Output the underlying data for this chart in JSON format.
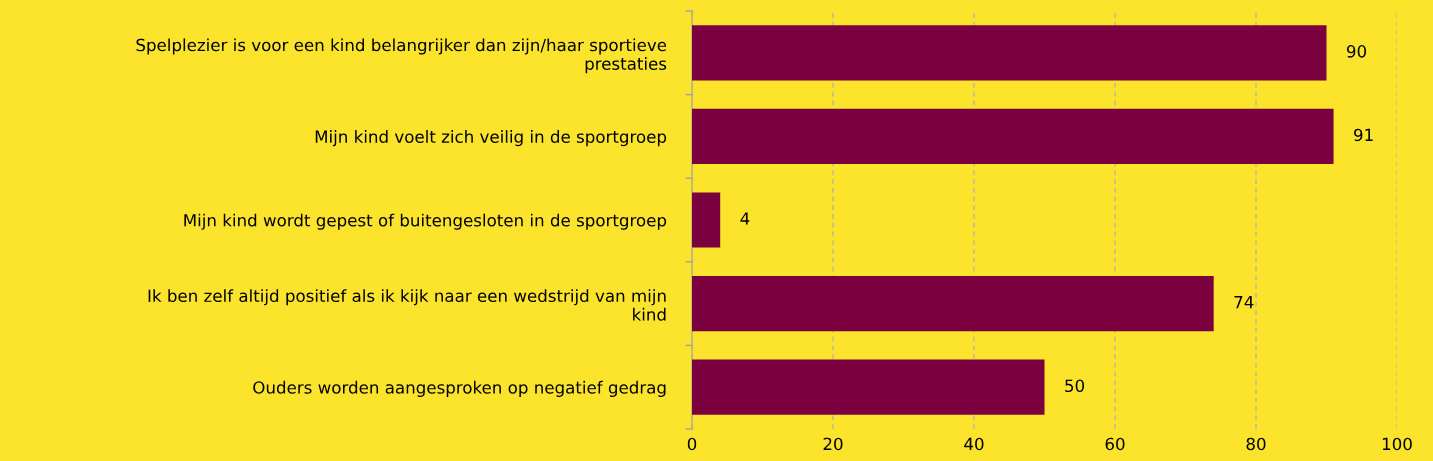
{
  "chart_data": {
    "type": "bar",
    "orientation": "horizontal",
    "categories": [
      "Spelplezier is voor een kind belangrijker dan zijn/haar sportieve\nprestaties",
      "Mijn kind voelt zich veilig in de sportgroep",
      "Mijn kind wordt gepest of buitengesloten in de sportgroep",
      "Ik ben zelf altijd positief als ik kijk naar een wedstrijd van mijn\nkind",
      "Ouders worden aangesproken op negatief gedrag"
    ],
    "values": [
      90,
      91,
      4,
      74,
      50
    ],
    "color": "#7b003f",
    "xlim": [
      0,
      100
    ],
    "xticks": [
      0,
      20,
      40,
      60,
      80,
      100
    ],
    "grid": "x",
    "data_labels": true
  }
}
